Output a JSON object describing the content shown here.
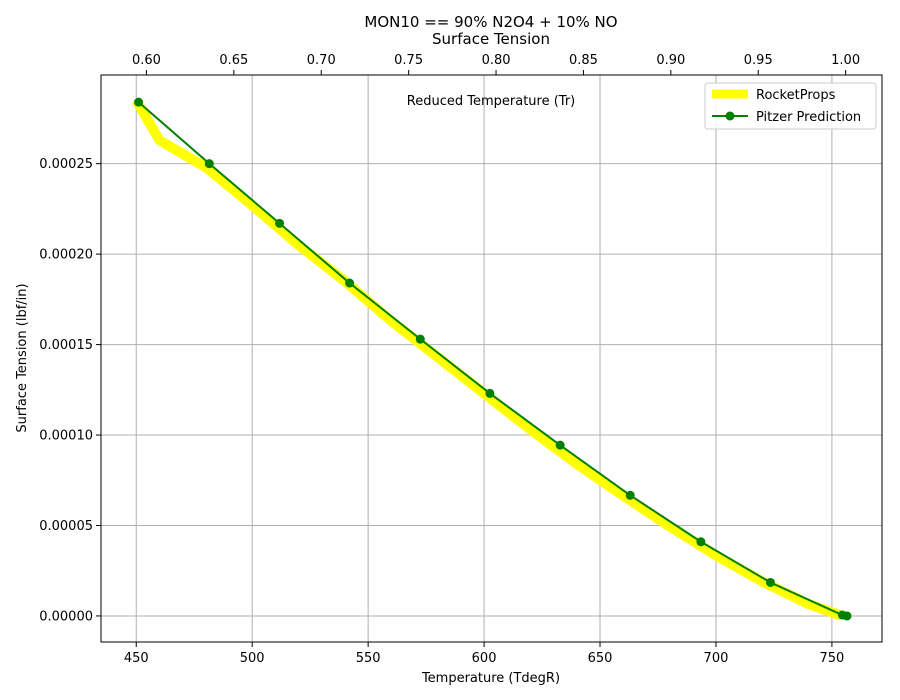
{
  "chart_data": {
    "type": "line",
    "title": "MON10 == 90% N2O4 + 10% NO",
    "subtitle": "Surface Tension",
    "xlabel": "Temperature (TdegR)",
    "ylabel": "Surface Tension (lbf/in)",
    "x2label": "Reduced Temperature (Tr)",
    "xlim": [
      434.8,
      771.6
    ],
    "ylim": [
      -1.44e-05,
      0.000299
    ],
    "x2lim": [
      0.574,
      1.0208
    ],
    "x_ticks": [
      450,
      500,
      550,
      600,
      650,
      700,
      750
    ],
    "x_tick_labels": [
      "450",
      "500",
      "550",
      "600",
      "650",
      "700",
      "750"
    ],
    "y_ticks": [
      0,
      5e-05,
      0.0001,
      0.00015,
      0.0002,
      0.00025
    ],
    "y_tick_labels": [
      "0.00000",
      "0.00005",
      "0.00010",
      "0.00015",
      "0.00020",
      "0.00025"
    ],
    "x2_ticks": [
      0.6,
      0.65,
      0.7,
      0.75,
      0.8,
      0.85,
      0.9,
      0.95,
      1.0
    ],
    "x2_tick_labels": [
      "0.60",
      "0.65",
      "0.70",
      "0.75",
      "0.80",
      "0.85",
      "0.90",
      "0.95",
      "1.00"
    ],
    "grid": true,
    "legend_position": "top-right",
    "series": [
      {
        "name": "RocketProps",
        "color": "#ffff00",
        "style": "thick-line",
        "x": [
          450,
          460,
          480,
          500,
          520,
          540,
          560,
          580,
          600,
          620,
          640,
          660,
          680,
          700,
          720,
          740,
          750,
          754
        ],
        "y": [
          0.000285,
          0.000263,
          0.000248,
          0.000227,
          0.000205,
          0.000185,
          0.000163,
          0.000143,
          0.000123,
          0.000103,
          8.4e-05,
          6.65e-05,
          4.95e-05,
          3.35e-05,
          1.9e-05,
          6.5e-06,
          2e-06,
          2e-07
        ]
      },
      {
        "name": "Pitzer Prediction",
        "color": "#008000",
        "style": "line-with-markers",
        "x": [
          451,
          481.5,
          511.8,
          542,
          572.5,
          602.5,
          632.8,
          663,
          693.5,
          723.5,
          754.5,
          756.5
        ],
        "y": [
          0.000284,
          0.00025,
          0.000217,
          0.000184,
          0.000153,
          0.000123,
          9.44e-05,
          6.67e-05,
          4.1e-05,
          1.85e-05,
          5e-07,
          0.0
        ]
      }
    ]
  }
}
